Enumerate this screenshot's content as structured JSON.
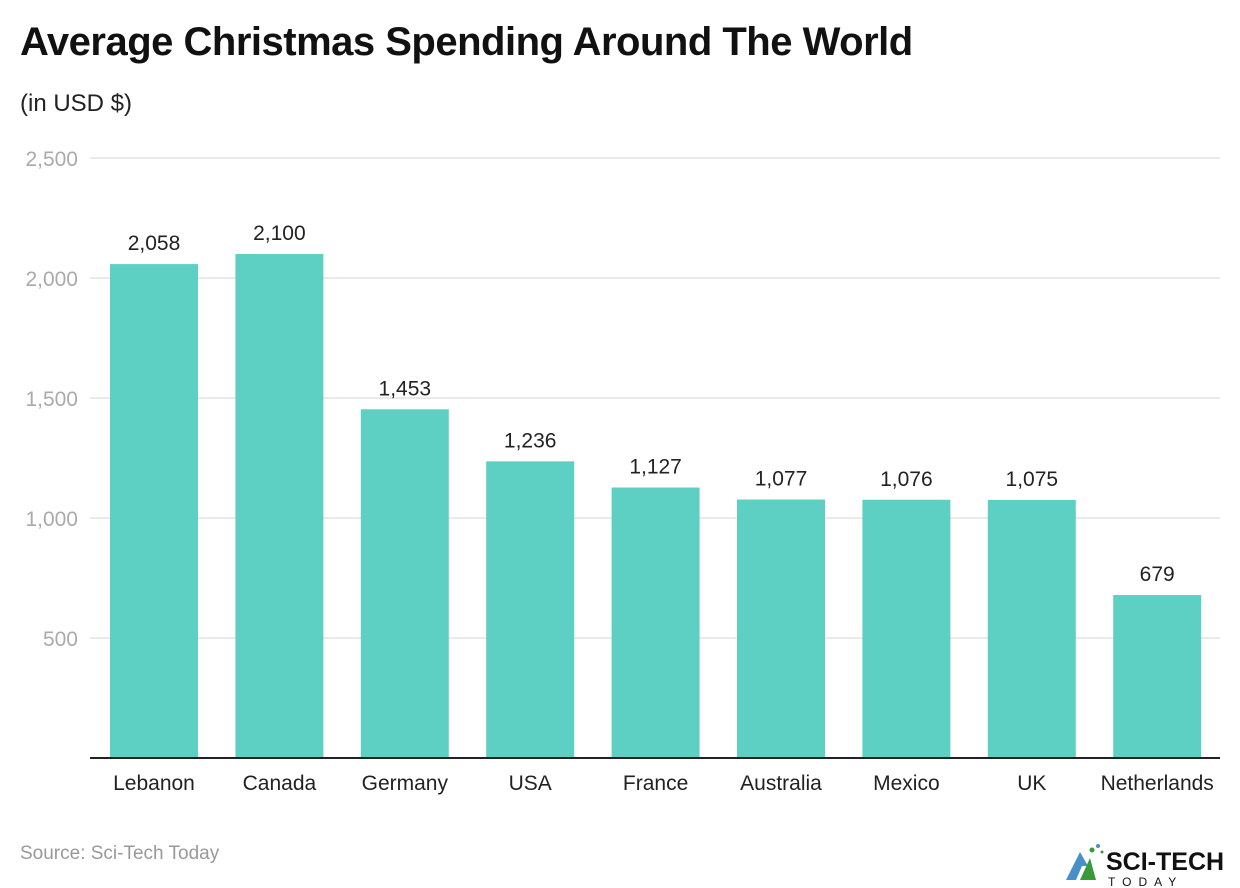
{
  "header": {
    "title": "Average Christmas Spending Around The World",
    "subtitle": "(in USD $)"
  },
  "footer": {
    "source": "Source: Sci-Tech Today",
    "logo_text": "SCI-TECH TODAY"
  },
  "colors": {
    "bar": "#5dd0c3",
    "grid": "#e3e3e3",
    "axis_tick": "#aaaaaa",
    "baseline": "#222222"
  },
  "chart_data": {
    "type": "bar",
    "title": "Average Christmas Spending Around The World",
    "subtitle": "(in USD $)",
    "categories": [
      "Lebanon",
      "Canada",
      "Germany",
      "USA",
      "France",
      "Australia",
      "Mexico",
      "UK",
      "Netherlands"
    ],
    "values": [
      2058,
      2100,
      1453,
      1236,
      1127,
      1077,
      1076,
      1075,
      679
    ],
    "value_labels": [
      "2,058",
      "2,100",
      "1,453",
      "1,236",
      "1,127",
      "1,077",
      "1,076",
      "1,075",
      "679"
    ],
    "yticks": [
      500,
      1000,
      1500,
      2000,
      2500
    ],
    "ytick_labels": [
      "500",
      "1,000",
      "1,500",
      "2,000",
      "2,500"
    ],
    "ylim": [
      0,
      2500
    ],
    "grid": true,
    "legend": "none"
  }
}
